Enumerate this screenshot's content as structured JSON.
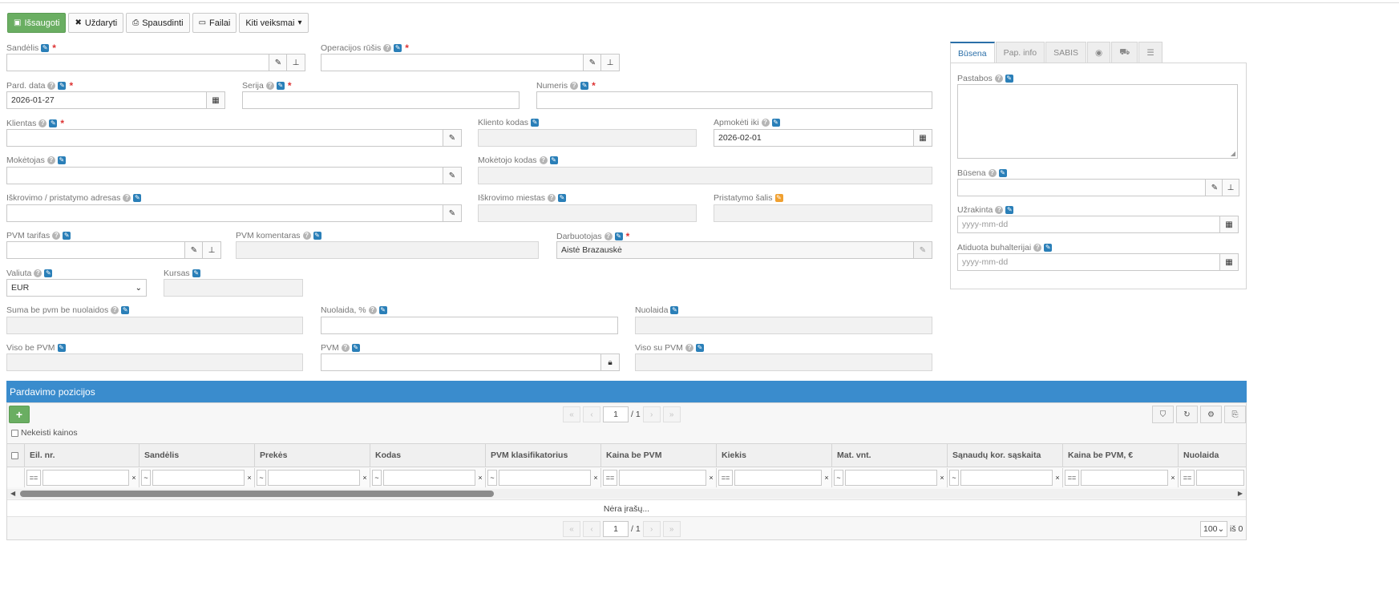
{
  "toolbar": {
    "save": "Išsaugoti",
    "close": "Uždaryti",
    "print": "Spausdinti",
    "files": "Failai",
    "more": "Kiti veiksmai"
  },
  "form": {
    "sandelis": {
      "label": "Sandėlis",
      "value": ""
    },
    "operacijos_rusis": {
      "label": "Operacijos rūšis",
      "value": ""
    },
    "pard_data": {
      "label": "Pard. data",
      "value": "2026-01-27"
    },
    "serija": {
      "label": "Serija",
      "value": ""
    },
    "numeris": {
      "label": "Numeris",
      "value": ""
    },
    "klientas": {
      "label": "Klientas",
      "value": ""
    },
    "kliento_kodas": {
      "label": "Kliento kodas",
      "value": ""
    },
    "apmoketi_iki": {
      "label": "Apmokėti iki",
      "value": "2026-02-01"
    },
    "moketojas": {
      "label": "Mokėtojas",
      "value": ""
    },
    "moketojo_kodas": {
      "label": "Mokėtojo kodas",
      "value": ""
    },
    "adresas": {
      "label": "Iškrovimo / pristatymo adresas",
      "value": ""
    },
    "miestas": {
      "label": "Iškrovimo miestas",
      "value": ""
    },
    "salis": {
      "label": "Pristatymo šalis",
      "value": ""
    },
    "pvm_tarifas": {
      "label": "PVM tarifas",
      "value": ""
    },
    "pvm_komentaras": {
      "label": "PVM komentaras",
      "value": ""
    },
    "darbuotojas": {
      "label": "Darbuotojas",
      "value": "Aistė Brazauskė"
    },
    "valiuta": {
      "label": "Valiuta",
      "value": "EUR"
    },
    "kursas": {
      "label": "Kursas",
      "value": ""
    },
    "suma_be_pvm": {
      "label": "Suma be pvm be nuolaidos",
      "value": ""
    },
    "nuolaida_proc": {
      "label": "Nuolaida, %",
      "value": ""
    },
    "nuolaida": {
      "label": "Nuolaida",
      "value": ""
    },
    "viso_be_pvm": {
      "label": "Viso be PVM",
      "value": ""
    },
    "pvm": {
      "label": "PVM",
      "value": ""
    },
    "viso_su_pvm": {
      "label": "Viso su PVM",
      "value": ""
    }
  },
  "side_panel": {
    "tabs": [
      "Būsena",
      "Pap. info",
      "SABIS"
    ],
    "icon_tabs": [
      "eye-icon",
      "car-icon",
      "list-icon"
    ],
    "pastabos": {
      "label": "Pastabos",
      "value": ""
    },
    "busena": {
      "label": "Būsena",
      "value": ""
    },
    "uzrakinta": {
      "label": "Užrakinta",
      "placeholder": "yyyy-mm-dd"
    },
    "atiduota": {
      "label": "Atiduota buhalterijai",
      "placeholder": "yyyy-mm-dd"
    }
  },
  "grid": {
    "title": "Pardavimo pozicijos",
    "keep_prices": "Nekeisti kainos",
    "page": "1",
    "page_of": "/ 1",
    "columns": [
      "Eil. nr.",
      "Sandėlis",
      "Prekės",
      "Kodas",
      "PVM klasifikatorius",
      "Kaina be PVM",
      "Kiekis",
      "Mat. vnt.",
      "Sąnaudų kor. sąskaita",
      "Kaina be PVM, €",
      "Nuolaida"
    ],
    "filter_ops": [
      "==",
      "~",
      "~",
      "~",
      "~",
      "==",
      "==",
      "~",
      "~",
      "==",
      "=="
    ],
    "no_records": "Nėra įrašų...",
    "page_size": "100",
    "total": "iš 0"
  },
  "colors": {
    "primary": "#6aae62",
    "header": "#3a8ccd",
    "tab_active": "#2b6fa8"
  }
}
